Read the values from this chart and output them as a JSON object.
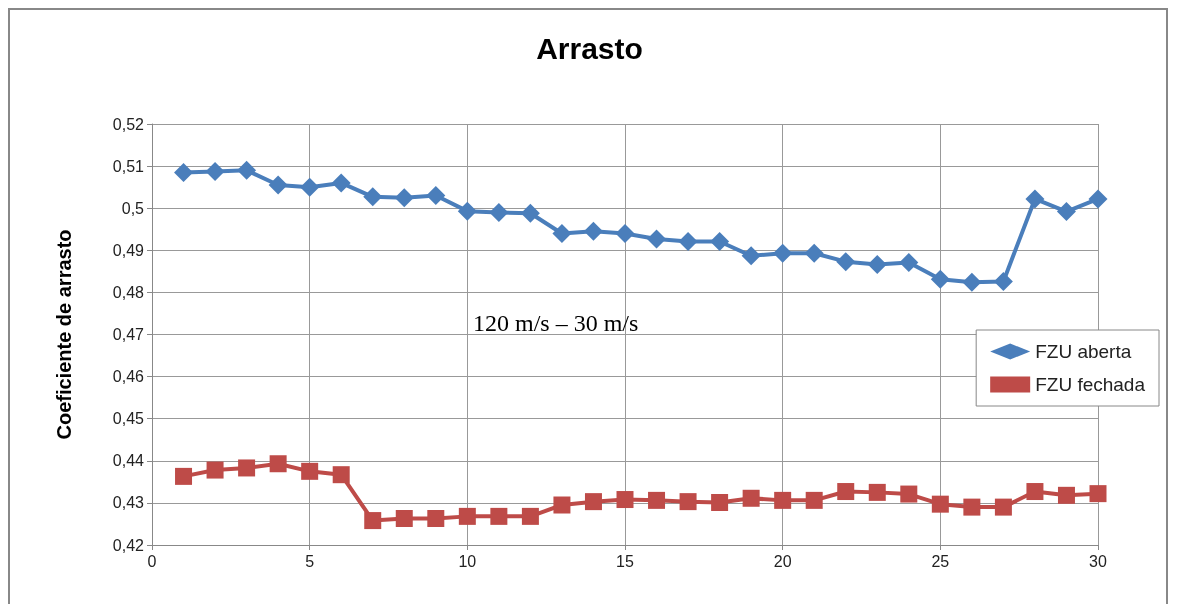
{
  "chart_data": {
    "type": "line",
    "title": "Arrasto",
    "ylabel": "Coeficiente de arrasto",
    "x": [
      1,
      2,
      3,
      4,
      5,
      6,
      7,
      8,
      9,
      10,
      11,
      12,
      13,
      14,
      15,
      16,
      17,
      18,
      19,
      20,
      21,
      22,
      23,
      24,
      25,
      26,
      27,
      28,
      29,
      30
    ],
    "series": [
      {
        "name": "FZU aberta",
        "color": "#4a7ebb",
        "marker": "diamond",
        "values": [
          0.5085,
          0.5087,
          0.509,
          0.5055,
          0.505,
          0.506,
          0.5027,
          0.5025,
          0.503,
          0.4993,
          0.499,
          0.4988,
          0.494,
          0.4945,
          0.494,
          0.4927,
          0.4921,
          0.4921,
          0.4887,
          0.4893,
          0.4893,
          0.4873,
          0.4866,
          0.4871,
          0.4831,
          0.4824,
          0.4826,
          0.5022,
          0.4992,
          0.5022
        ]
      },
      {
        "name": "FZU fechada",
        "color": "#be4b48",
        "marker": "square",
        "values": [
          0.4363,
          0.4378,
          0.4383,
          0.4393,
          0.4375,
          0.4367,
          0.4258,
          0.4263,
          0.4263,
          0.4268,
          0.4268,
          0.4268,
          0.4295,
          0.4303,
          0.4308,
          0.4306,
          0.4303,
          0.4301,
          0.4311,
          0.4306,
          0.4306,
          0.4327,
          0.4325,
          0.4321,
          0.4297,
          0.429,
          0.429,
          0.4327,
          0.4318,
          0.4322
        ]
      }
    ],
    "xlim": [
      0,
      30
    ],
    "xticks": [
      0,
      5,
      10,
      15,
      20,
      25,
      30
    ],
    "ylim": [
      0.42,
      0.52
    ],
    "yticks": [
      {
        "value": 0.42,
        "label": "0,42"
      },
      {
        "value": 0.43,
        "label": "0,43"
      },
      {
        "value": 0.44,
        "label": "0,44"
      },
      {
        "value": 0.45,
        "label": "0,45"
      },
      {
        "value": 0.46,
        "label": "0,46"
      },
      {
        "value": 0.47,
        "label": "0,47"
      },
      {
        "value": 0.48,
        "label": "0,48"
      },
      {
        "value": 0.49,
        "label": "0,49"
      },
      {
        "value": 0.5,
        "label": "0,5"
      },
      {
        "value": 0.51,
        "label": "0,51"
      },
      {
        "value": 0.52,
        "label": "0,52"
      }
    ],
    "annotations": [
      "120 m/s – 30 m/s"
    ],
    "grid": true,
    "legend": "right",
    "line_style": "solid"
  }
}
